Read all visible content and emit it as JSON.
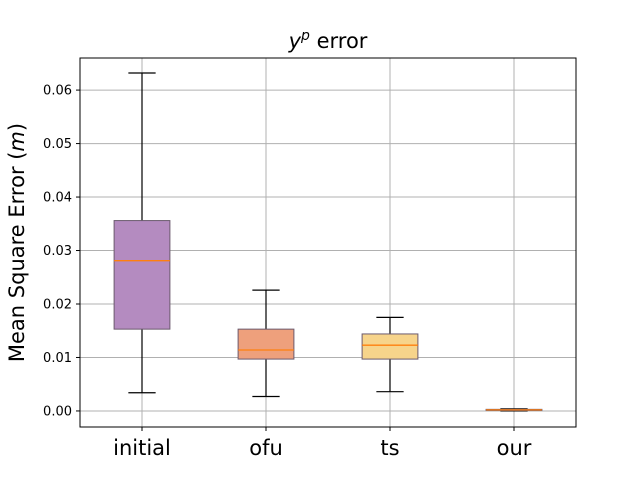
{
  "chart_data": {
    "type": "box",
    "title": {
      "var": "y",
      "sup": "p",
      "rest": " error"
    },
    "xlabel": "",
    "ylabel": {
      "text": "Mean Square Error (",
      "var": "m",
      "close": ")"
    },
    "ylim": [
      -0.003,
      0.066
    ],
    "yticks": [
      0.0,
      0.01,
      0.02,
      0.03,
      0.04,
      0.05,
      0.06
    ],
    "ytick_labels": [
      "0.00",
      "0.01",
      "0.02",
      "0.03",
      "0.04",
      "0.05",
      "0.06"
    ],
    "grid": true,
    "categories": [
      "initial",
      "ofu",
      "ts",
      "our"
    ],
    "boxes": [
      {
        "category": "initial",
        "whisker_low": 0.0034,
        "q1": 0.0153,
        "median": 0.0281,
        "q3": 0.0356,
        "whisker_high": 0.0632,
        "color": "#b48bc0"
      },
      {
        "category": "ofu",
        "whisker_low": 0.0027,
        "q1": 0.0097,
        "median": 0.0114,
        "q3": 0.0153,
        "whisker_high": 0.0226,
        "color": "#eea07c"
      },
      {
        "category": "ts",
        "whisker_low": 0.0036,
        "q1": 0.0097,
        "median": 0.0123,
        "q3": 0.0144,
        "whisker_high": 0.0175,
        "color": "#f7d48b"
      },
      {
        "category": "our",
        "whisker_low": 0.0,
        "q1": 0.0001,
        "median": 0.0002,
        "q3": 0.0003,
        "whisker_high": 0.0004,
        "color": "#f6c98a"
      }
    ],
    "median_color": "#ff7f0e"
  }
}
